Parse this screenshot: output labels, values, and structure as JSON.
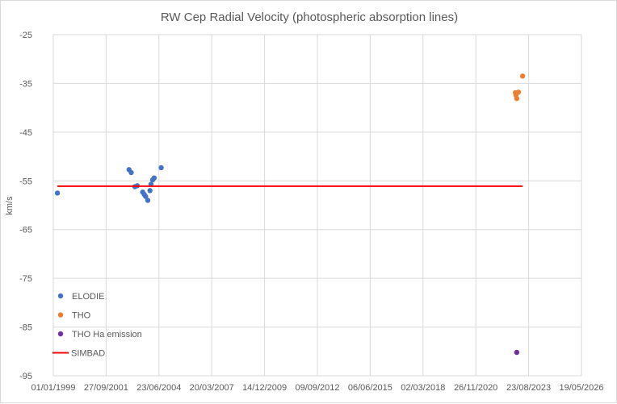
{
  "chart_data": {
    "type": "scatter",
    "title": "RW Cep Radial Velocity (photospheric absorption lines)",
    "xlabel": "",
    "ylabel": "km/s",
    "x_type": "date",
    "xlim": [
      "1999-01-01",
      "2026-05-19"
    ],
    "ylim": [
      -95,
      -25
    ],
    "x_ticks": [
      "01/01/1999",
      "27/09/2001",
      "23/06/2004",
      "20/03/2007",
      "14/12/2009",
      "09/09/2012",
      "06/06/2015",
      "02/03/2018",
      "26/11/2020",
      "23/08/2023",
      "19/05/2026"
    ],
    "x_tick_dates": [
      "1999-01-01",
      "2001-09-27",
      "2004-06-23",
      "2007-03-20",
      "2009-12-14",
      "2012-09-09",
      "2015-06-06",
      "2018-03-02",
      "2020-11-26",
      "2023-08-23",
      "2026-05-19"
    ],
    "y_ticks": [
      -25,
      -35,
      -45,
      -55,
      -65,
      -75,
      -85,
      -95
    ],
    "grid": true,
    "legend_position": "bottom-left",
    "series": [
      {
        "name": "ELODIE",
        "color": "#4472C4",
        "marker": "circle",
        "points": [
          {
            "x": "1999-03-20",
            "y": -57.5
          },
          {
            "x": "2002-12-05",
            "y": -52.7
          },
          {
            "x": "2003-01-15",
            "y": -53.3
          },
          {
            "x": "2003-03-25",
            "y": -56.2
          },
          {
            "x": "2003-05-10",
            "y": -56.0
          },
          {
            "x": "2003-08-20",
            "y": -57.3
          },
          {
            "x": "2003-09-20",
            "y": -57.8
          },
          {
            "x": "2003-10-15",
            "y": -58.2
          },
          {
            "x": "2003-11-25",
            "y": -59.0
          },
          {
            "x": "2004-01-05",
            "y": -57.0
          },
          {
            "x": "2004-01-25",
            "y": -55.7
          },
          {
            "x": "2004-02-25",
            "y": -54.8
          },
          {
            "x": "2004-03-25",
            "y": -54.4
          },
          {
            "x": "2004-08-05",
            "y": -52.3
          }
        ]
      },
      {
        "name": "THO",
        "color": "#ED7D31",
        "marker": "circle",
        "points": [
          {
            "x": "2022-12-15",
            "y": -36.9
          },
          {
            "x": "2022-12-25",
            "y": -37.4
          },
          {
            "x": "2023-01-10",
            "y": -38.1
          },
          {
            "x": "2023-02-10",
            "y": -36.8
          },
          {
            "x": "2023-05-01",
            "y": -33.5
          }
        ]
      },
      {
        "name": "THO Ha emission",
        "color": "#7030A0",
        "marker": "circle",
        "points": [
          {
            "x": "2023-01-10",
            "y": -90.2
          }
        ]
      },
      {
        "name": "SIMBAD",
        "color": "#FF0000",
        "marker": "line",
        "points": [
          {
            "x": "1999-03-20",
            "y": -56.1
          },
          {
            "x": "2023-05-01",
            "y": -56.1
          }
        ]
      }
    ]
  }
}
